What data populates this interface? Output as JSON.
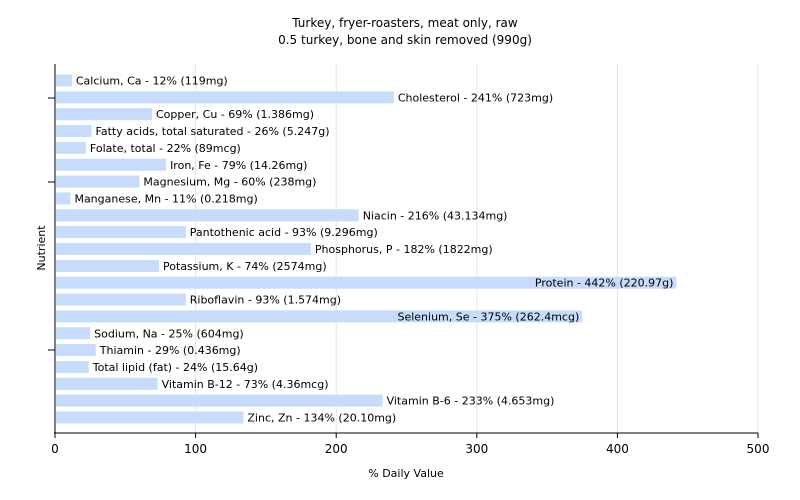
{
  "chart_data": {
    "type": "bar",
    "orientation": "horizontal",
    "title": "Turkey, fryer-roasters, meat only, raw",
    "subtitle": "0.5 turkey, bone and skin removed (990g)",
    "xlabel": "% Daily Value",
    "ylabel": "Nutrient",
    "xlim": [
      0,
      500
    ],
    "xticks": [
      0,
      100,
      200,
      300,
      400,
      500
    ],
    "grid": true,
    "bar_color": "#c6dcfa",
    "categories": [
      "Calcium, Ca",
      "Cholesterol",
      "Copper, Cu",
      "Fatty acids, total saturated",
      "Folate, total",
      "Iron, Fe",
      "Magnesium, Mg",
      "Manganese, Mn",
      "Niacin",
      "Pantothenic acid",
      "Phosphorus, P",
      "Potassium, K",
      "Protein",
      "Riboflavin",
      "Selenium, Se",
      "Sodium, Na",
      "Thiamin",
      "Total lipid (fat)",
      "Vitamin B-12",
      "Vitamin B-6",
      "Zinc, Zn"
    ],
    "values": [
      12,
      241,
      69,
      26,
      22,
      79,
      60,
      11,
      216,
      93,
      182,
      74,
      442,
      93,
      375,
      25,
      29,
      24,
      73,
      233,
      134
    ],
    "labels": [
      "Calcium, Ca - 12% (119mg)",
      "Cholesterol - 241% (723mg)",
      "Copper, Cu - 69% (1.386mg)",
      "Fatty acids, total saturated - 26% (5.247g)",
      "Folate, total - 22% (89mcg)",
      "Iron, Fe - 79% (14.26mg)",
      "Magnesium, Mg - 60% (238mg)",
      "Manganese, Mn - 11% (0.218mg)",
      "Niacin - 216% (43.134mg)",
      "Pantothenic acid - 93% (9.296mg)",
      "Phosphorus, P - 182% (1822mg)",
      "Potassium, K - 74% (2574mg)",
      "Protein - 442% (220.97g)",
      "Riboflavin - 93% (1.574mg)",
      "Selenium, Se - 375% (262.4mcg)",
      "Sodium, Na - 25% (604mg)",
      "Thiamin - 29% (0.436mg)",
      "Total lipid (fat) - 24% (15.64g)",
      "Vitamin B-12 - 73% (4.36mcg)",
      "Vitamin B-6 - 233% (4.653mg)",
      "Zinc, Zn - 134% (20.10mg)"
    ]
  }
}
